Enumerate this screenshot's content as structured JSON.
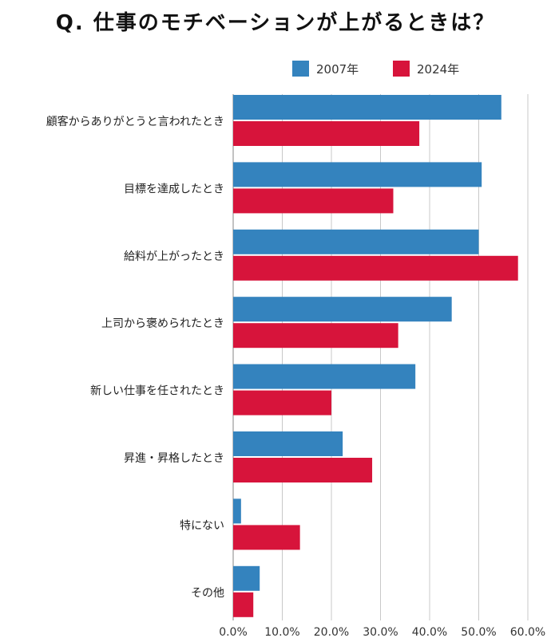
{
  "chart_data": {
    "type": "bar",
    "orientation": "horizontal",
    "title": "Q. 仕事のモチベーションが上がるときは？",
    "categories": [
      "顧客からありがとうと言われたとき",
      "目標を達成したとき",
      "給料が上がったとき",
      "上司から褒められたとき",
      "新しい仕事を任されたとき",
      "昇進・昇格したとき",
      "特にない",
      "その他"
    ],
    "series": [
      {
        "name": "2007年",
        "color": "#3483BE",
        "values": [
          54.6,
          50.6,
          50.0,
          44.5,
          37.1,
          22.3,
          1.6,
          5.4
        ]
      },
      {
        "name": "2024年",
        "color": "#D7143B",
        "values": [
          37.9,
          32.6,
          58.0,
          33.6,
          20.0,
          28.3,
          13.6,
          4.1
        ]
      }
    ],
    "xlim": [
      0,
      60
    ],
    "xticks": [
      "0.0%",
      "10.0%",
      "20.0%",
      "30.0%",
      "40.0%",
      "50.0%",
      "60.0%"
    ],
    "xtick_values": [
      0,
      10,
      20,
      30,
      40,
      50,
      60
    ],
    "grid": true,
    "legend_position": "top"
  }
}
